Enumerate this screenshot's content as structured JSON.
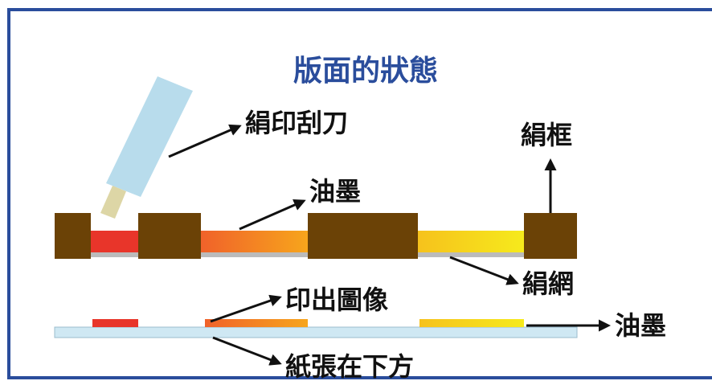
{
  "title": "版面的狀態",
  "labels": {
    "squeegee": "絹印刮刀",
    "frame": "絹框",
    "ink_top": "油墨",
    "mesh": "絹網",
    "printed_image": "印出圖像",
    "ink_bottom": "油墨",
    "paper": "紙張在下方"
  }
}
